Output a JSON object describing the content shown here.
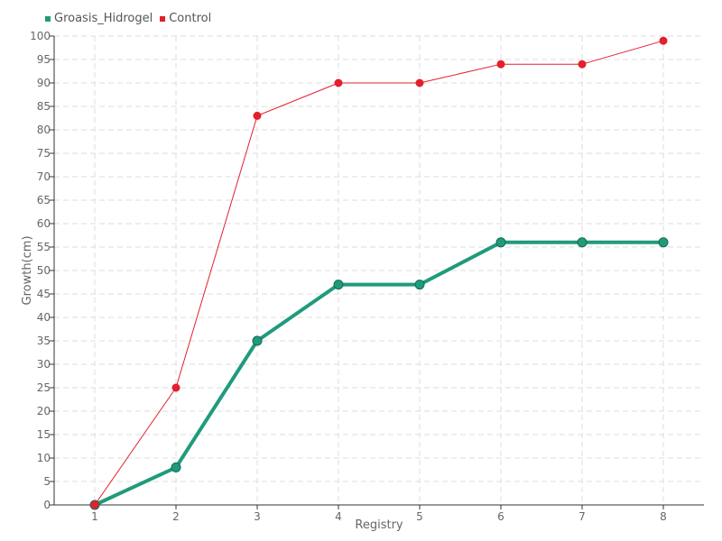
{
  "chart_data": {
    "type": "line",
    "x": [
      1,
      2,
      3,
      4,
      5,
      6,
      7,
      8
    ],
    "series": [
      {
        "name": "Groasis_Hidrogel",
        "values": [
          0,
          8,
          35,
          47,
          47,
          56,
          56,
          56
        ],
        "color": "#1f9b7c"
      },
      {
        "name": "Control",
        "values": [
          0,
          25,
          83,
          90,
          90,
          94,
          94,
          99
        ],
        "color": "#e3202b"
      }
    ],
    "xlabel": "Registry",
    "ylabel": "Growth(cm)",
    "xlim": [
      0.5,
      8.5
    ],
    "ylim": [
      0,
      100
    ],
    "ytick_step": 5,
    "grid": true,
    "legend": "top-left"
  }
}
